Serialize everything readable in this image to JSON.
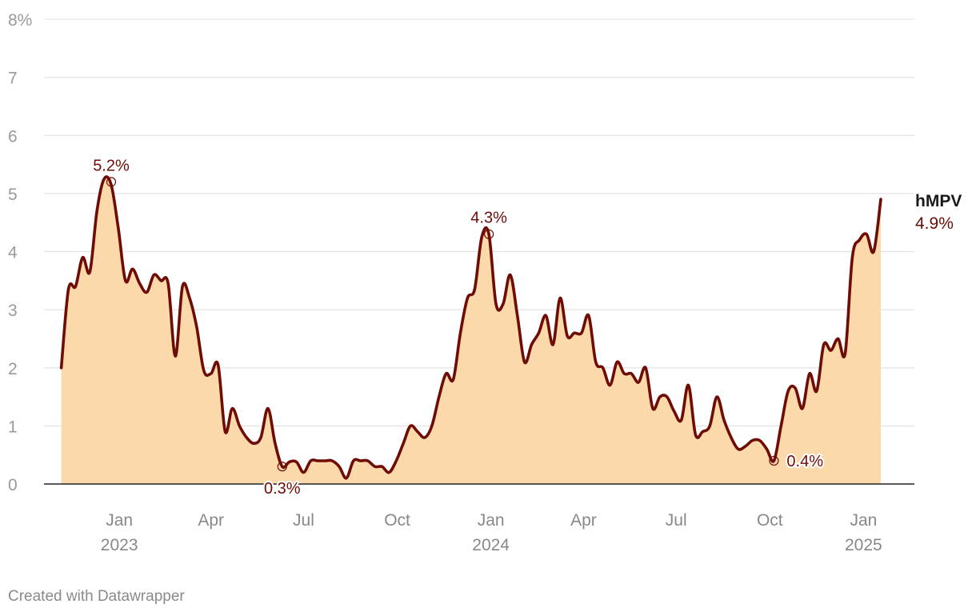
{
  "chart_data": {
    "type": "area",
    "series": [
      {
        "name": "hMPV",
        "color": "#6e0c05",
        "fill": "#fbd9ab",
        "unit": "%",
        "points": [
          [
            "2022-11-05",
            2.0
          ],
          [
            "2022-11-12",
            3.35
          ],
          [
            "2022-11-19",
            3.4
          ],
          [
            "2022-11-26",
            3.9
          ],
          [
            "2022-12-03",
            3.65
          ],
          [
            "2022-12-10",
            4.7
          ],
          [
            "2022-12-17",
            5.25
          ],
          [
            "2022-12-24",
            5.15
          ],
          [
            "2022-12-31",
            4.4
          ],
          [
            "2023-01-07",
            3.5
          ],
          [
            "2023-01-14",
            3.7
          ],
          [
            "2023-01-21",
            3.45
          ],
          [
            "2023-01-28",
            3.3
          ],
          [
            "2023-02-04",
            3.6
          ],
          [
            "2023-02-11",
            3.5
          ],
          [
            "2023-02-18",
            3.45
          ],
          [
            "2023-02-25",
            2.2
          ],
          [
            "2023-03-04",
            3.4
          ],
          [
            "2023-03-11",
            3.2
          ],
          [
            "2023-03-18",
            2.7
          ],
          [
            "2023-03-25",
            1.95
          ],
          [
            "2023-04-01",
            1.9
          ],
          [
            "2023-04-08",
            2.05
          ],
          [
            "2023-04-15",
            0.9
          ],
          [
            "2023-04-22",
            1.3
          ],
          [
            "2023-04-29",
            1.0
          ],
          [
            "2023-05-06",
            0.8
          ],
          [
            "2023-05-13",
            0.7
          ],
          [
            "2023-05-20",
            0.8
          ],
          [
            "2023-05-27",
            1.3
          ],
          [
            "2023-06-03",
            0.7
          ],
          [
            "2023-06-10",
            0.3
          ],
          [
            "2023-06-17",
            0.38
          ],
          [
            "2023-06-24",
            0.38
          ],
          [
            "2023-07-01",
            0.2
          ],
          [
            "2023-07-08",
            0.4
          ],
          [
            "2023-07-15",
            0.4
          ],
          [
            "2023-07-22",
            0.4
          ],
          [
            "2023-07-29",
            0.4
          ],
          [
            "2023-08-05",
            0.3
          ],
          [
            "2023-08-12",
            0.1
          ],
          [
            "2023-08-19",
            0.4
          ],
          [
            "2023-08-26",
            0.4
          ],
          [
            "2023-09-02",
            0.4
          ],
          [
            "2023-09-09",
            0.3
          ],
          [
            "2023-09-16",
            0.3
          ],
          [
            "2023-09-23",
            0.2
          ],
          [
            "2023-09-30",
            0.4
          ],
          [
            "2023-10-07",
            0.7
          ],
          [
            "2023-10-14",
            1.0
          ],
          [
            "2023-10-21",
            0.9
          ],
          [
            "2023-10-28",
            0.8
          ],
          [
            "2023-11-04",
            1.0
          ],
          [
            "2023-11-11",
            1.5
          ],
          [
            "2023-11-18",
            1.9
          ],
          [
            "2023-11-25",
            1.8
          ],
          [
            "2023-12-02",
            2.6
          ],
          [
            "2023-12-09",
            3.2
          ],
          [
            "2023-12-16",
            3.35
          ],
          [
            "2023-12-23",
            4.25
          ],
          [
            "2023-12-30",
            4.3
          ],
          [
            "2024-01-06",
            3.1
          ],
          [
            "2024-01-13",
            3.1
          ],
          [
            "2024-01-20",
            3.6
          ],
          [
            "2024-01-27",
            2.9
          ],
          [
            "2024-02-03",
            2.1
          ],
          [
            "2024-02-10",
            2.4
          ],
          [
            "2024-02-17",
            2.6
          ],
          [
            "2024-02-24",
            2.9
          ],
          [
            "2024-03-02",
            2.4
          ],
          [
            "2024-03-09",
            3.2
          ],
          [
            "2024-03-16",
            2.55
          ],
          [
            "2024-03-23",
            2.6
          ],
          [
            "2024-03-30",
            2.6
          ],
          [
            "2024-04-06",
            2.9
          ],
          [
            "2024-04-13",
            2.1
          ],
          [
            "2024-04-20",
            2.0
          ],
          [
            "2024-04-27",
            1.7
          ],
          [
            "2024-05-04",
            2.1
          ],
          [
            "2024-05-11",
            1.9
          ],
          [
            "2024-05-18",
            1.9
          ],
          [
            "2024-05-25",
            1.75
          ],
          [
            "2024-06-01",
            2.0
          ],
          [
            "2024-06-08",
            1.3
          ],
          [
            "2024-06-15",
            1.5
          ],
          [
            "2024-06-22",
            1.5
          ],
          [
            "2024-06-29",
            1.25
          ],
          [
            "2024-07-06",
            1.1
          ],
          [
            "2024-07-13",
            1.7
          ],
          [
            "2024-07-20",
            0.85
          ],
          [
            "2024-07-27",
            0.9
          ],
          [
            "2024-08-03",
            1.0
          ],
          [
            "2024-08-10",
            1.5
          ],
          [
            "2024-08-17",
            1.1
          ],
          [
            "2024-08-24",
            0.8
          ],
          [
            "2024-08-31",
            0.6
          ],
          [
            "2024-09-07",
            0.65
          ],
          [
            "2024-09-14",
            0.75
          ],
          [
            "2024-09-21",
            0.75
          ],
          [
            "2024-09-28",
            0.6
          ],
          [
            "2024-10-05",
            0.4
          ],
          [
            "2024-10-12",
            1.0
          ],
          [
            "2024-10-19",
            1.6
          ],
          [
            "2024-10-26",
            1.65
          ],
          [
            "2024-11-02",
            1.3
          ],
          [
            "2024-11-09",
            1.9
          ],
          [
            "2024-11-16",
            1.6
          ],
          [
            "2024-11-23",
            2.4
          ],
          [
            "2024-11-30",
            2.3
          ],
          [
            "2024-12-07",
            2.5
          ],
          [
            "2024-12-14",
            2.25
          ],
          [
            "2024-12-21",
            3.9
          ],
          [
            "2024-12-28",
            4.2
          ],
          [
            "2025-01-04",
            4.3
          ],
          [
            "2025-01-11",
            4.0
          ],
          [
            "2025-01-18",
            4.9
          ]
        ]
      }
    ],
    "title": "",
    "xlabel": "",
    "ylabel": "",
    "ylim": [
      0,
      8
    ],
    "xlim": [
      "2022-10-19",
      "2025-02-20"
    ],
    "y_ticks": [
      {
        "value": 0,
        "label": "0"
      },
      {
        "value": 1,
        "label": "1"
      },
      {
        "value": 2,
        "label": "2"
      },
      {
        "value": 3,
        "label": "3"
      },
      {
        "value": 4,
        "label": "4"
      },
      {
        "value": 5,
        "label": "5"
      },
      {
        "value": 6,
        "label": "6"
      },
      {
        "value": 7,
        "label": "7"
      },
      {
        "value": 8,
        "label": "8%"
      }
    ],
    "x_ticks": [
      {
        "date": "2023-01-01",
        "label": "Jan",
        "year": "2023"
      },
      {
        "date": "2023-04-01",
        "label": "Apr",
        "year": ""
      },
      {
        "date": "2023-07-01",
        "label": "Jul",
        "year": ""
      },
      {
        "date": "2023-10-01",
        "label": "Oct",
        "year": ""
      },
      {
        "date": "2024-01-01",
        "label": "Jan",
        "year": "2024"
      },
      {
        "date": "2024-04-01",
        "label": "Apr",
        "year": ""
      },
      {
        "date": "2024-07-01",
        "label": "Jul",
        "year": ""
      },
      {
        "date": "2024-10-01",
        "label": "Oct",
        "year": ""
      },
      {
        "date": "2025-01-01",
        "label": "Jan",
        "year": "2025"
      }
    ],
    "grid": true,
    "annotations": [
      {
        "date": "2022-12-24",
        "value": 5.2,
        "label": "5.2%",
        "placement": "above"
      },
      {
        "date": "2023-06-10",
        "value": 0.3,
        "label": "0.3%",
        "placement": "below"
      },
      {
        "date": "2023-12-30",
        "value": 4.3,
        "label": "4.3%",
        "placement": "above"
      },
      {
        "date": "2024-10-05",
        "value": 0.4,
        "label": "0.4%",
        "placement": "right"
      }
    ],
    "end_label": {
      "name": "hMPV",
      "value_label": "4.9%"
    }
  },
  "footer": {
    "credit": "Created with Datawrapper"
  }
}
